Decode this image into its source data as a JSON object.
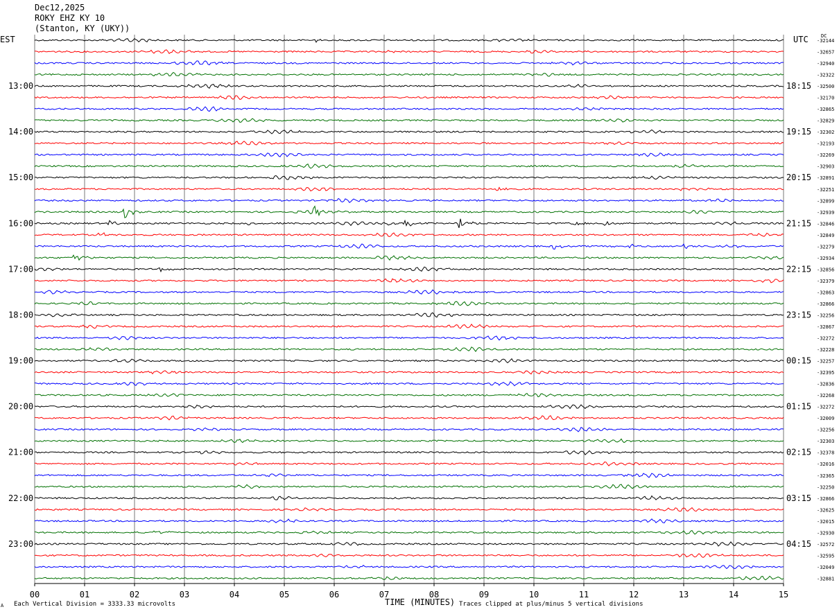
{
  "header": {
    "date": "Dec12,2025",
    "station": "ROKY EHZ KY 10",
    "location": "(Stanton, KY (UKY))"
  },
  "left_zone": "EST",
  "right_zone": "UTC",
  "dc_label": "DC",
  "footer": {
    "scale_note": "Each Vertical Division = 3333.33 microvolts",
    "clip_note": "Traces clipped at plus/minus 5 vertical divisions",
    "corner_mark": "A"
  },
  "colors": {
    "trace_cycle": [
      "#000000",
      "#ff0000",
      "#0000ff",
      "#007000"
    ],
    "grid": "#777777"
  },
  "chart_data": {
    "type": "line",
    "description_of_axes": "helicorder: 15-minute lines over 4 hour blocks",
    "xlabel": "TIME (MINUTES)",
    "x_ticks": [
      "00",
      "01",
      "02",
      "03",
      "04",
      "05",
      "06",
      "07",
      "08",
      "09",
      "10",
      "11",
      "12",
      "13",
      "14",
      "15"
    ],
    "xlim": [
      0,
      15
    ],
    "left_time_labels": [
      "13:00",
      "14:00",
      "15:00",
      "16:00",
      "17:00",
      "18:00",
      "19:00",
      "20:00",
      "21:00",
      "22:00",
      "23:00"
    ],
    "right_time_labels": [
      "18:15",
      "19:15",
      "20:15",
      "21:15",
      "22:15",
      "23:15",
      "00:15",
      "01:15",
      "02:15",
      "03:15",
      "04:15"
    ],
    "dc_offsets": [
      "-32144",
      "-32657",
      "-32940",
      "-32322",
      "-32500",
      "-32170",
      "-32865",
      "-32829",
      "-32302",
      "-32193",
      "-32269",
      "-32903",
      "-32891",
      "-32251",
      "-32899",
      "-32939",
      "-32846",
      "-32849",
      "-32279",
      "-32934",
      "-32856",
      "-32379",
      "-32863",
      "-32866",
      "-32256",
      "-32867",
      "-32272",
      "-32228",
      "-32257",
      "-32395",
      "-32836",
      "-32268",
      "-32272",
      "-32009",
      "-32256",
      "-32303",
      "-32378",
      "-32016",
      "-32365",
      "-32250",
      "-32866",
      "-32625",
      "-32015",
      "-32930",
      "-32572",
      "-32595",
      "-32049",
      "-32881"
    ],
    "events": [
      {
        "row": 15,
        "minute": 1.8,
        "amp": 9
      },
      {
        "row": 15,
        "minute": 5.6,
        "amp": 7
      },
      {
        "row": 16,
        "minute": 1.5,
        "amp": 5
      },
      {
        "row": 16,
        "minute": 4.3,
        "amp": 4
      },
      {
        "row": 16,
        "minute": 7.0,
        "amp": 6
      },
      {
        "row": 16,
        "minute": 7.4,
        "amp": 9
      },
      {
        "row": 16,
        "minute": 8.5,
        "amp": 9
      },
      {
        "row": 16,
        "minute": 10.8,
        "amp": 4
      },
      {
        "row": 16,
        "minute": 11.4,
        "amp": 5
      },
      {
        "row": 17,
        "minute": 1.3,
        "amp": 4
      },
      {
        "row": 17,
        "minute": 7.0,
        "amp": 4
      },
      {
        "row": 18,
        "minute": 10.4,
        "amp": 5
      },
      {
        "row": 18,
        "minute": 11.9,
        "amp": 4
      },
      {
        "row": 18,
        "minute": 13.0,
        "amp": 4
      },
      {
        "row": 19,
        "minute": 0.8,
        "amp": 10
      },
      {
        "row": 20,
        "minute": 2.5,
        "amp": 5
      },
      {
        "row": 13,
        "minute": 9.2,
        "amp": 5
      },
      {
        "row": 43,
        "minute": 2.4,
        "amp": 6
      },
      {
        "row": 1,
        "minute": 7.1,
        "amp": 3
      },
      {
        "row": 0,
        "minute": 5.6,
        "amp": 3
      }
    ]
  }
}
